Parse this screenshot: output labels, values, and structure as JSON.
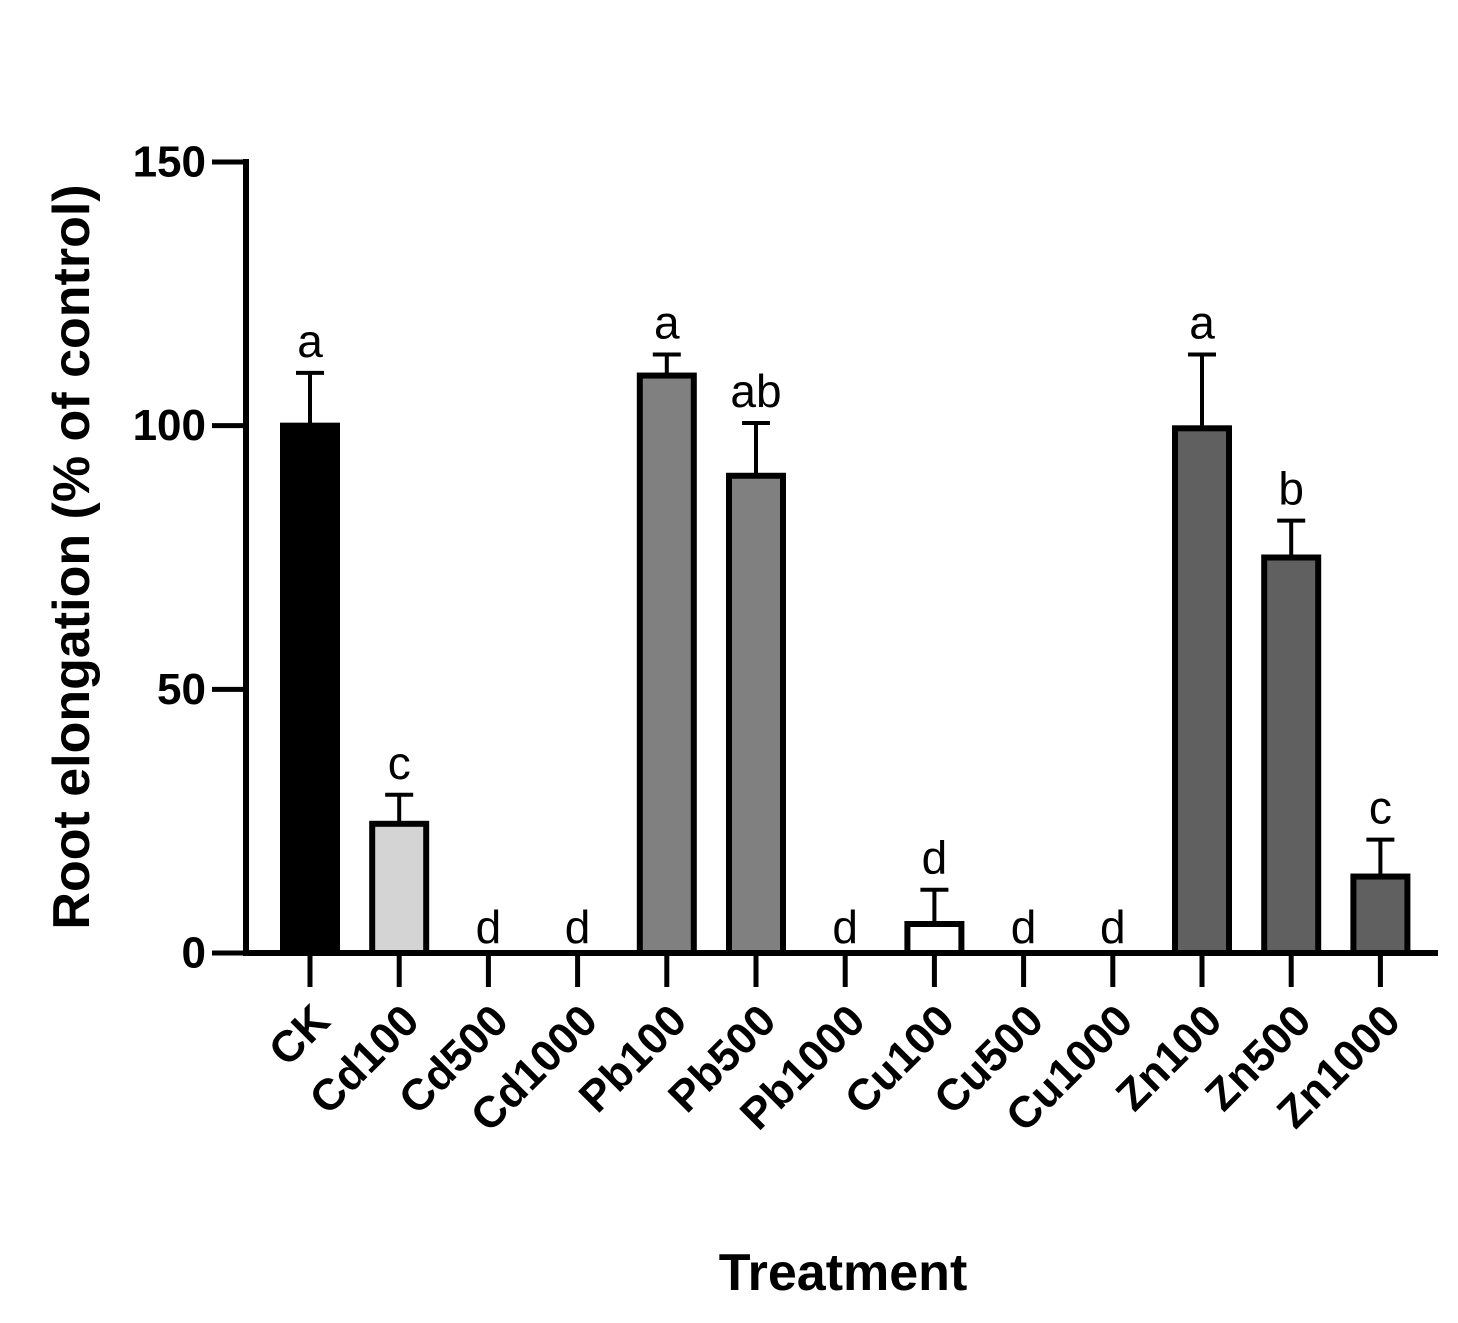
{
  "chart_data": {
    "type": "bar",
    "title": "",
    "xlabel": "Treatment",
    "ylabel": "Root elongation (% of control)",
    "ylim": [
      0,
      150
    ],
    "yticks": [
      0,
      50,
      100,
      150
    ],
    "categories": [
      "CK",
      "Cd100",
      "Cd500",
      "Cd1000",
      "Pb100",
      "Pb500",
      "Pb1000",
      "Cu100",
      "Cu500",
      "Cu1000",
      "Zn100",
      "Zn500",
      "Zn1000"
    ],
    "values": [
      100,
      24.5,
      0,
      0,
      109.5,
      90.5,
      0,
      5.5,
      0,
      0,
      99.5,
      75,
      14.5
    ],
    "errors": [
      10,
      5.5,
      0,
      0,
      4,
      10,
      0,
      6.5,
      0,
      0,
      14,
      7,
      7
    ],
    "significance": [
      "a",
      "c",
      "d",
      "d",
      "a",
      "ab",
      "d",
      "d",
      "d",
      "d",
      "a",
      "b",
      "c"
    ],
    "bar_colors": [
      "#000000",
      "#d4d4d4",
      "#ffffff",
      "#ffffff",
      "#808080",
      "#808080",
      "#808080",
      "#ffffff",
      "#ffffff",
      "#ffffff",
      "#606060",
      "#606060",
      "#606060"
    ],
    "grid": false,
    "legend": "none"
  }
}
